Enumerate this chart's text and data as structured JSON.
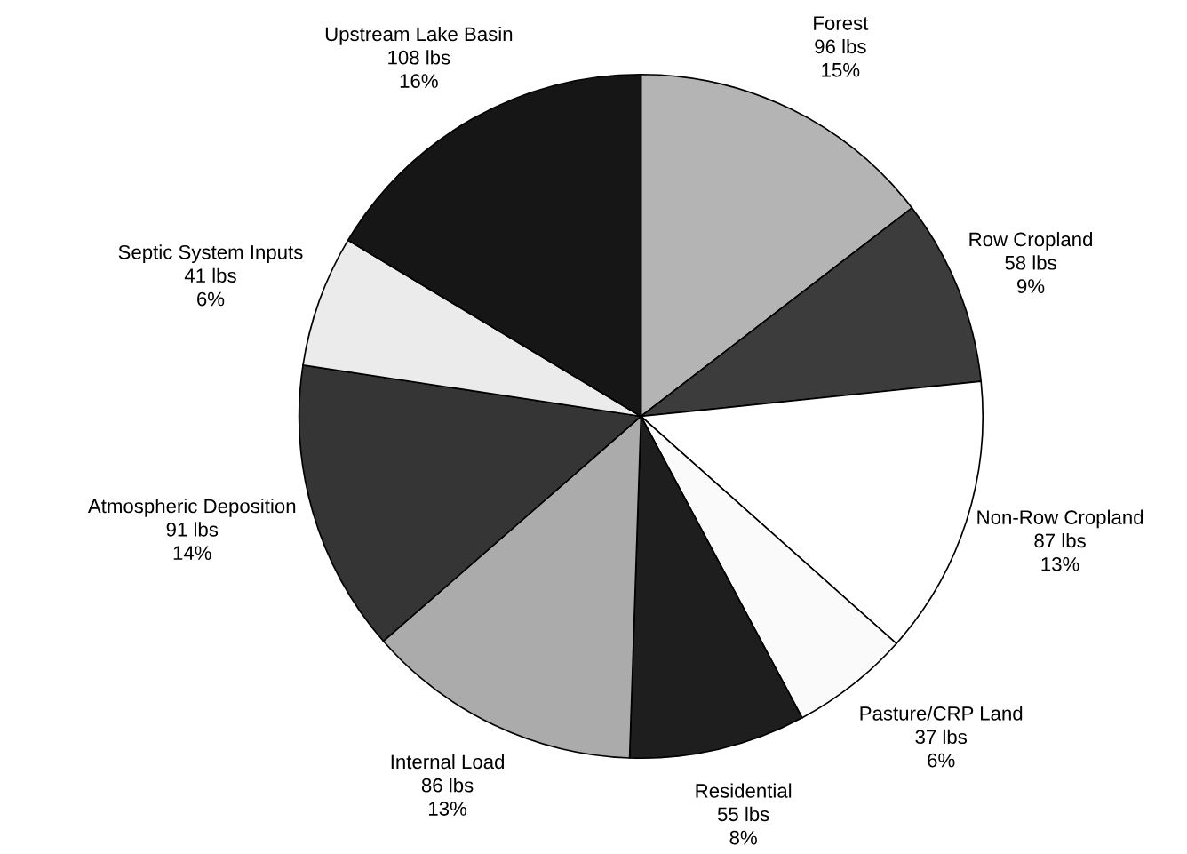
{
  "chart_data": {
    "type": "pie",
    "categories": [
      "Forest",
      "Row Cropland",
      "Non-Row Cropland",
      "Pasture/CRP Land",
      "Residential",
      "Internal Load",
      "Atmospheric Deposition",
      "Septic System Inputs",
      "Upstream Lake Basin"
    ],
    "values": [
      96,
      58,
      87,
      37,
      55,
      86,
      91,
      41,
      108
    ],
    "value_labels": [
      "96 lbs\n15%",
      "58 lbs\n9%",
      "87 lbs\n13%",
      "37 lbs\n6%",
      "55 lbs\n8%",
      "86 lbs\n13%",
      "91 lbs\n14%",
      "41 lbs\n6%",
      "108 lbs\n16%"
    ],
    "colors": [
      "#b4b4b4",
      "#3c3c3c",
      "#ffffff",
      "#fafafa",
      "#1e1e1e",
      "#ababab",
      "#353535",
      "#ebebeb",
      "#161616"
    ],
    "legend": false
  }
}
